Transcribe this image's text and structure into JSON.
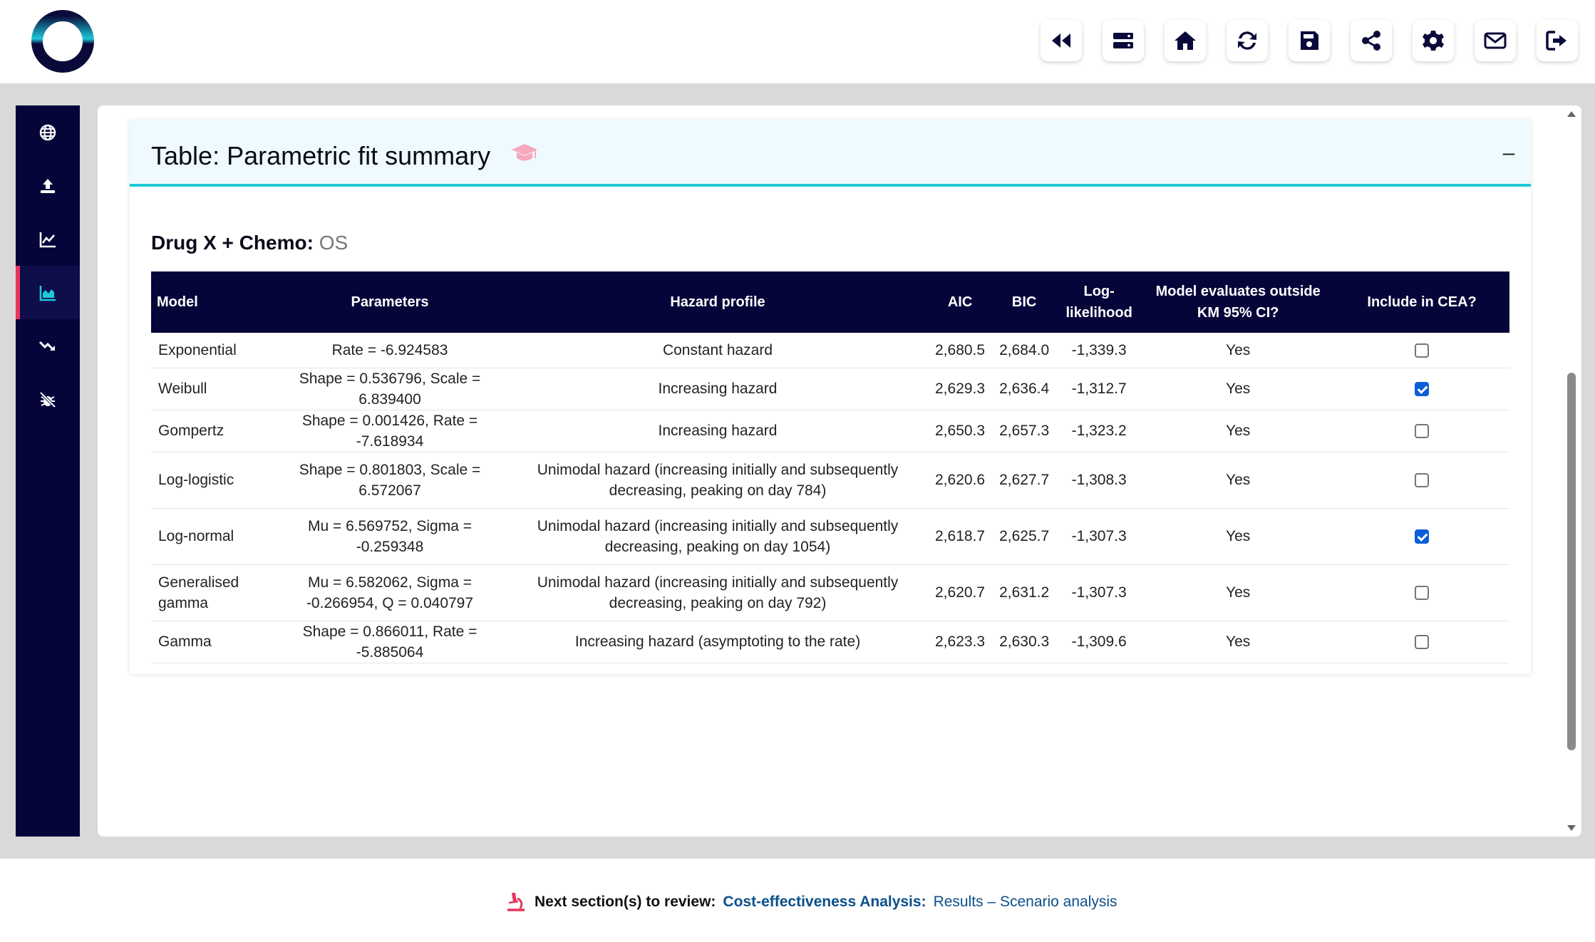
{
  "header": {
    "toolbar": [
      {
        "name": "rewind-icon"
      },
      {
        "name": "server-icon"
      },
      {
        "name": "home-icon"
      },
      {
        "name": "refresh-icon"
      },
      {
        "name": "save-icon"
      },
      {
        "name": "share-icon"
      },
      {
        "name": "gear-icon"
      },
      {
        "name": "mail-icon"
      },
      {
        "name": "logout-icon"
      }
    ]
  },
  "sidebar": {
    "items": [
      {
        "name": "globe-icon",
        "active": false
      },
      {
        "name": "upload-icon",
        "active": false
      },
      {
        "name": "line-chart-icon",
        "active": false
      },
      {
        "name": "area-chart-icon",
        "active": true
      },
      {
        "name": "trend-down-icon",
        "active": false
      },
      {
        "name": "bug-slash-icon",
        "active": false
      }
    ]
  },
  "card": {
    "title": "Table: Parametric fit summary",
    "collapse_label": "–",
    "subhead_drug": "Drug X + Chemo:",
    "subhead_endpoint": "OS"
  },
  "table": {
    "headers": {
      "model": "Model",
      "parameters": "Parameters",
      "hazard": "Hazard profile",
      "aic": "AIC",
      "bic": "BIC",
      "loglik": "Log-likelihood",
      "km": "Model evaluates outside KM 95% CI?",
      "cea": "Include in CEA?"
    },
    "rows": [
      {
        "model": "Exponential",
        "parameters": "Rate = -6.924583",
        "hazard": "Constant hazard",
        "aic": "2,680.5",
        "bic": "2,684.0",
        "loglik": "-1,339.3",
        "km": "Yes",
        "cea": false
      },
      {
        "model": "Weibull",
        "parameters": "Shape = 0.536796, Scale = 6.839400",
        "hazard": "Increasing hazard",
        "aic": "2,629.3",
        "bic": "2,636.4",
        "loglik": "-1,312.7",
        "km": "Yes",
        "cea": true
      },
      {
        "model": "Gompertz",
        "parameters": "Shape = 0.001426, Rate = -7.618934",
        "hazard": "Increasing hazard",
        "aic": "2,650.3",
        "bic": "2,657.3",
        "loglik": "-1,323.2",
        "km": "Yes",
        "cea": false
      },
      {
        "model": "Log-logistic",
        "parameters": "Shape = 0.801803, Scale = 6.572067",
        "hazard": "Unimodal hazard (increasing initially and subsequently decreasing, peaking on day 784)",
        "aic": "2,620.6",
        "bic": "2,627.7",
        "loglik": "-1,308.3",
        "km": "Yes",
        "cea": false
      },
      {
        "model": "Log-normal",
        "parameters": "Mu = 6.569752, Sigma = -0.259348",
        "hazard": "Unimodal hazard (increasing initially and subsequently decreasing, peaking on day 1054)",
        "aic": "2,618.7",
        "bic": "2,625.7",
        "loglik": "-1,307.3",
        "km": "Yes",
        "cea": true
      },
      {
        "model": "Generalised gamma",
        "parameters": "Mu = 6.582062, Sigma = -0.266954, Q = 0.040797",
        "hazard": "Unimodal hazard (increasing initially and subsequently decreasing, peaking on day 792)",
        "aic": "2,620.7",
        "bic": "2,631.2",
        "loglik": "-1,307.3",
        "km": "Yes",
        "cea": false
      },
      {
        "model": "Gamma",
        "parameters": "Shape = 0.866011, Rate = -5.885064",
        "hazard": "Increasing hazard (asymptoting to the rate)",
        "aic": "2,623.3",
        "bic": "2,630.3",
        "loglik": "-1,309.6",
        "km": "Yes",
        "cea": false
      }
    ]
  },
  "footer": {
    "label": "Next section(s) to review:",
    "link_section": "Cost-effectiveness Analysis:",
    "link_page": "Results – Scenario analysis"
  },
  "colors": {
    "navy": "#05053a",
    "accent_cyan": "#1ec8d8",
    "accent_pink": "#e8345c",
    "link_blue": "#0b4f8a"
  }
}
